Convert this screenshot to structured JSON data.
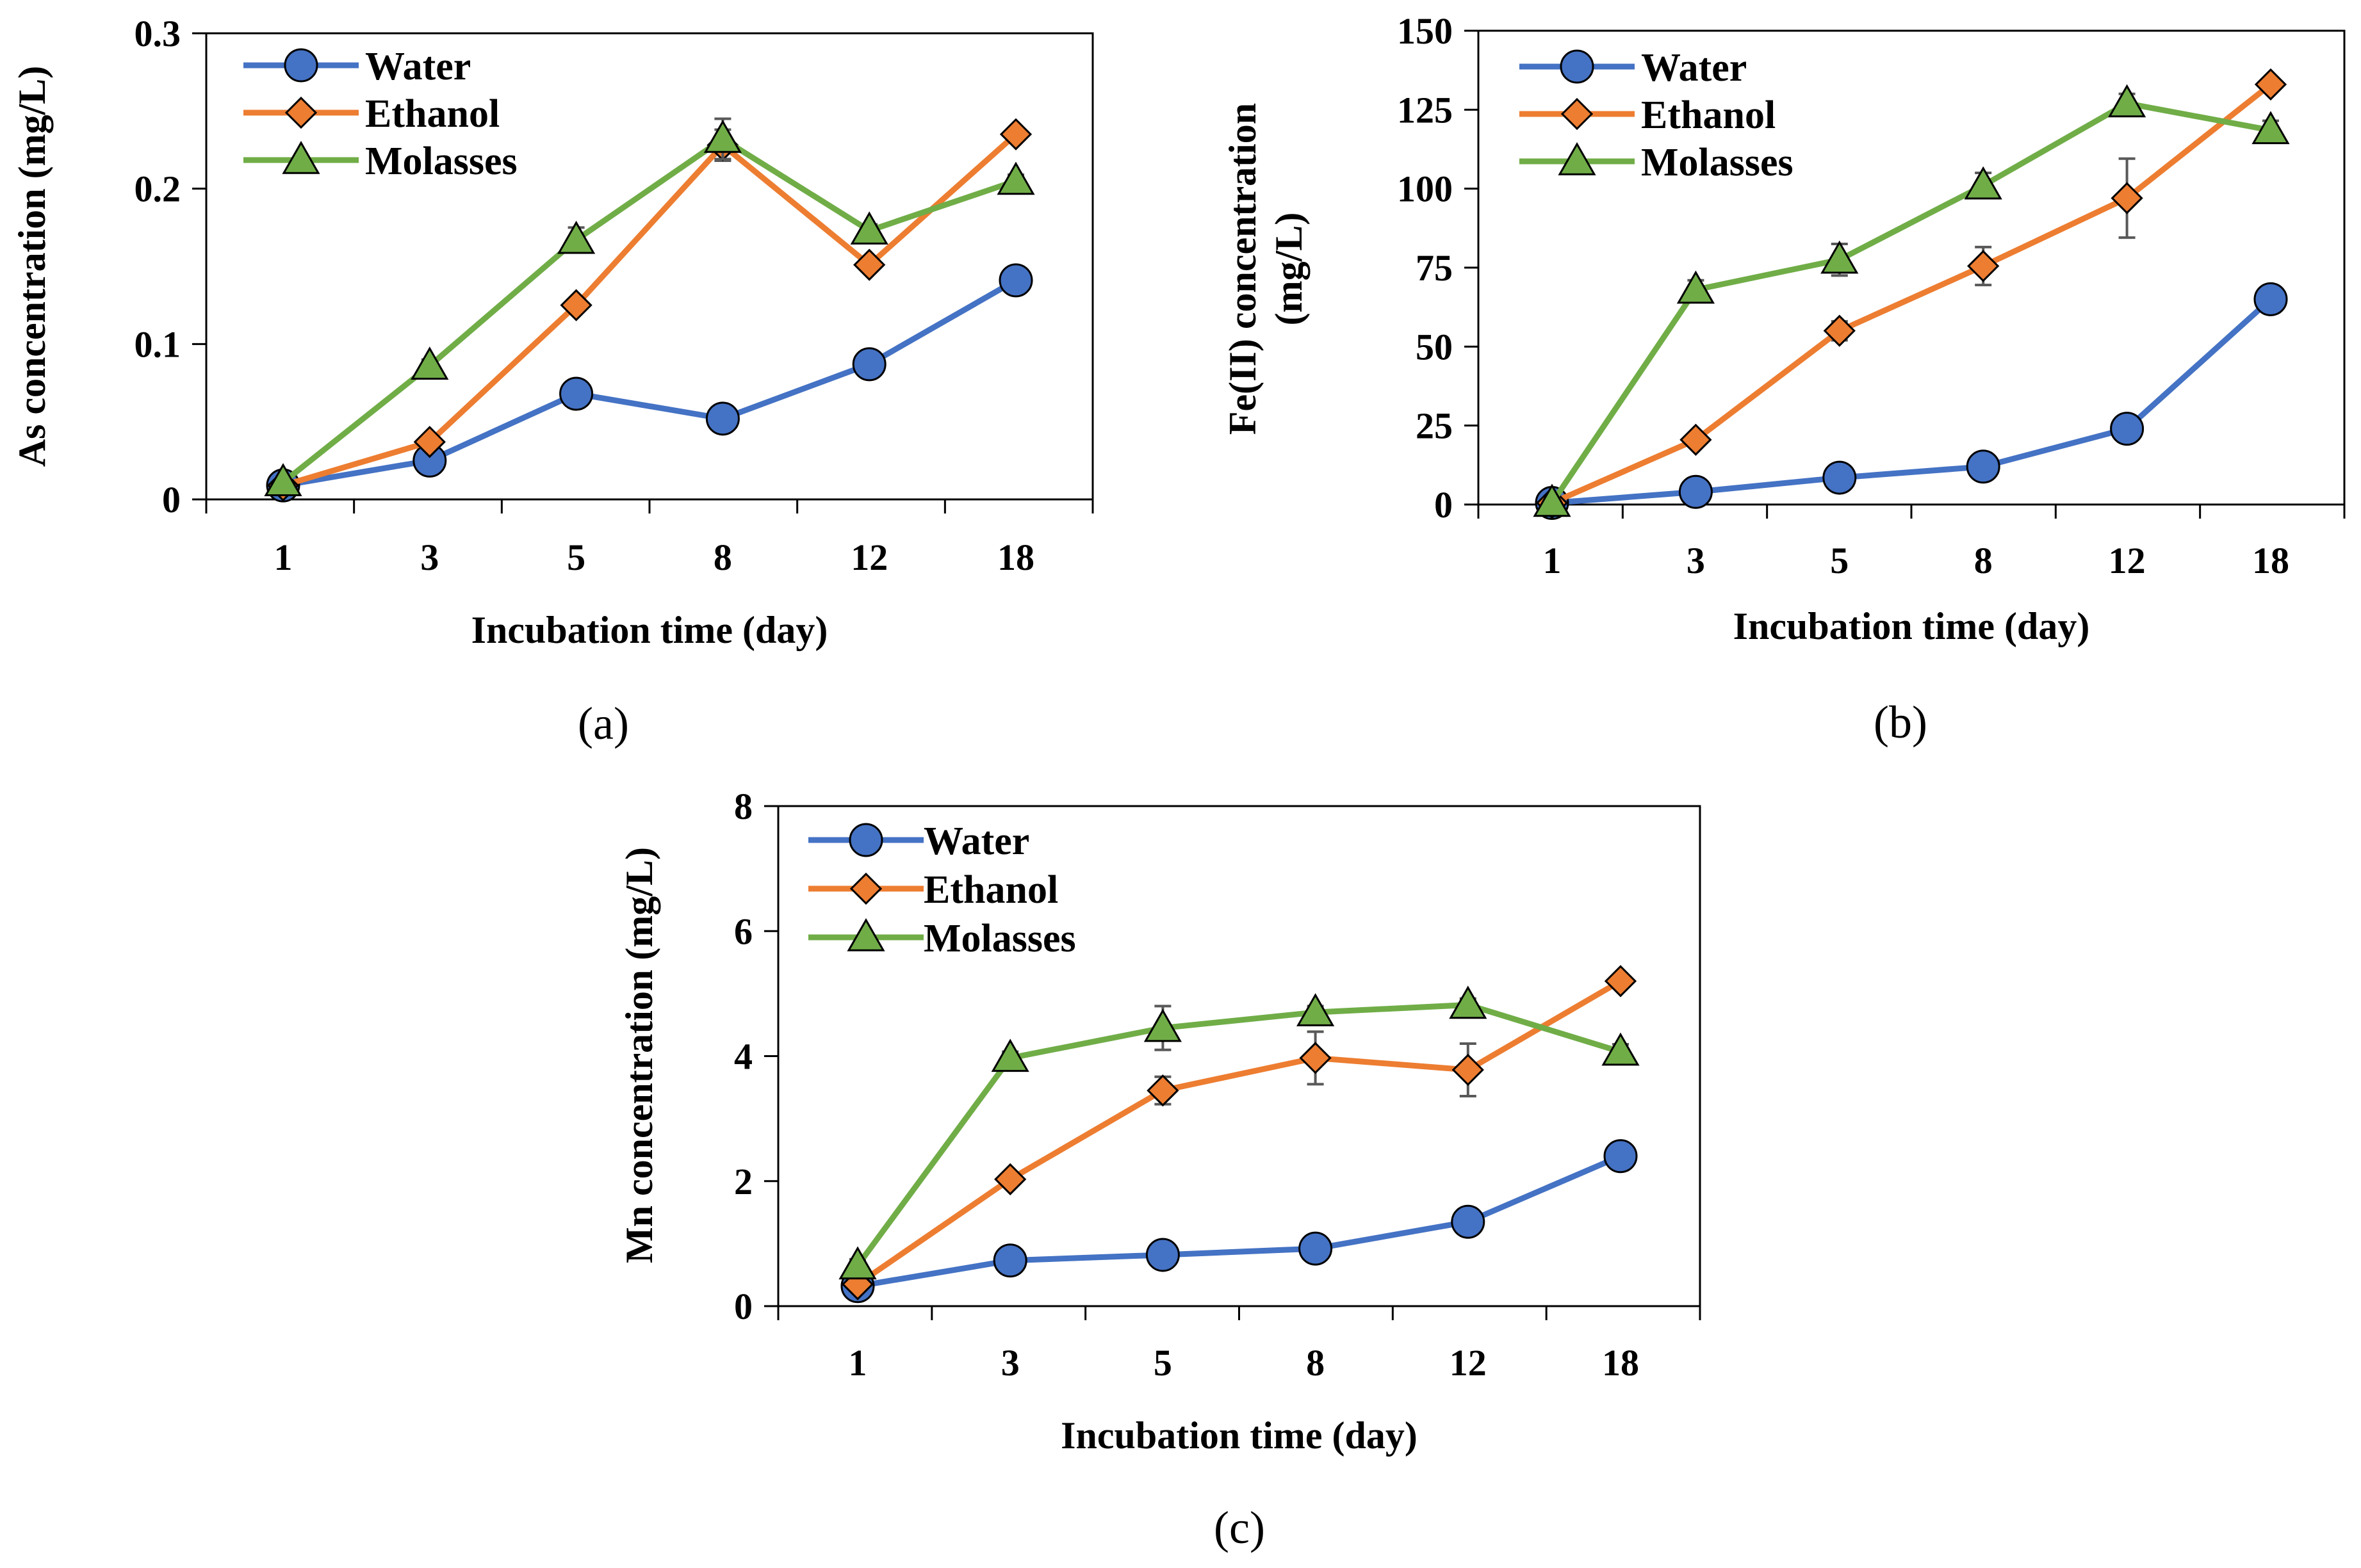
{
  "colors": {
    "water": "#4472C4",
    "ethanol": "#ED7D31",
    "molasses": "#70AD47",
    "error_bar": "#595959"
  },
  "chart_data": [
    {
      "type": "line",
      "panel": "(a)",
      "title": "",
      "categories": [
        "1",
        "3",
        "5",
        "8",
        "12",
        "18"
      ],
      "xlabel": "Incubation time (day)",
      "ylabel": "As concentration (mg/L)",
      "ylim": [
        0,
        0.3
      ],
      "yticks": [
        0,
        0.1,
        0.2,
        0.3
      ],
      "ytick_labels": [
        "0",
        "0.1",
        "0.2",
        "0.3"
      ],
      "legend_position": "top-left",
      "series": [
        {
          "name": "Water",
          "key": "water",
          "marker": "circle",
          "values": [
            0.009,
            0.025,
            0.068,
            0.052,
            0.087,
            0.141
          ],
          "errors": [
            0,
            0.003,
            0.003,
            0.002,
            0.006,
            0.003
          ]
        },
        {
          "name": "Ethanol",
          "key": "ethanol",
          "marker": "diamond",
          "values": [
            0.009,
            0.037,
            0.125,
            0.228,
            0.151,
            0.235
          ],
          "errors": [
            0,
            0.002,
            0.004,
            0.01,
            0.004,
            0.003
          ]
        },
        {
          "name": "Molasses",
          "key": "molasses",
          "marker": "triangle",
          "values": [
            0.011,
            0.086,
            0.167,
            0.232,
            0.173,
            0.205
          ],
          "errors": [
            0,
            0.004,
            0.008,
            0.013,
            0.004,
            0.004
          ]
        }
      ]
    },
    {
      "type": "line",
      "panel": "(b)",
      "title": "",
      "categories": [
        "1",
        "3",
        "5",
        "8",
        "12",
        "18"
      ],
      "xlabel": "Incubation time (day)",
      "ylabel": "Fe(II) concentration (mg/L)",
      "ylabel_lines": [
        "Fe(II) concentration",
        "(mg/L)"
      ],
      "ylim": [
        0,
        150
      ],
      "yticks": [
        0,
        25,
        50,
        75,
        100,
        125,
        150
      ],
      "ytick_labels": [
        "0",
        "25",
        "50",
        "75",
        "100",
        "125",
        "150"
      ],
      "legend_position": "top-left",
      "series": [
        {
          "name": "Water",
          "key": "water",
          "marker": "circle",
          "values": [
            0.5,
            4,
            8.5,
            12,
            24,
            65
          ],
          "errors": [
            0,
            0.5,
            1,
            1,
            2,
            2
          ]
        },
        {
          "name": "Ethanol",
          "key": "ethanol",
          "marker": "diamond",
          "values": [
            0.5,
            20.5,
            55,
            75.5,
            97,
            133
          ],
          "errors": [
            0,
            1.5,
            3,
            6,
            12.5,
            1.5
          ]
        },
        {
          "name": "Molasses",
          "key": "molasses",
          "marker": "triangle",
          "values": [
            0.5,
            68,
            77.5,
            101,
            127,
            118.5
          ],
          "errors": [
            0,
            3,
            5,
            4,
            3,
            3
          ]
        }
      ]
    },
    {
      "type": "line",
      "panel": "(c)",
      "title": "",
      "categories": [
        "1",
        "3",
        "5",
        "8",
        "12",
        "18"
      ],
      "xlabel": "Incubation time (day)",
      "ylabel": "Mn concentration (mg/L)",
      "ylim": [
        0,
        8
      ],
      "yticks": [
        0,
        2,
        4,
        6,
        8
      ],
      "ytick_labels": [
        "0",
        "2",
        "4",
        "6",
        "8"
      ],
      "legend_position": "top-left",
      "series": [
        {
          "name": "Water",
          "key": "water",
          "marker": "circle",
          "values": [
            0.32,
            0.73,
            0.82,
            0.92,
            1.35,
            2.4
          ],
          "errors": [
            0,
            0.05,
            0.05,
            0.05,
            0.08,
            0.08
          ]
        },
        {
          "name": "Ethanol",
          "key": "ethanol",
          "marker": "diamond",
          "values": [
            0.35,
            2.03,
            3.45,
            3.97,
            3.78,
            5.2
          ],
          "errors": [
            0,
            0.08,
            0.22,
            0.42,
            0.42,
            0.08
          ]
        },
        {
          "name": "Molasses",
          "key": "molasses",
          "marker": "triangle",
          "values": [
            0.65,
            3.97,
            4.45,
            4.7,
            4.82,
            4.07
          ],
          "errors": [
            0.1,
            0.1,
            0.35,
            0.1,
            0.1,
            0.12
          ]
        }
      ]
    }
  ]
}
